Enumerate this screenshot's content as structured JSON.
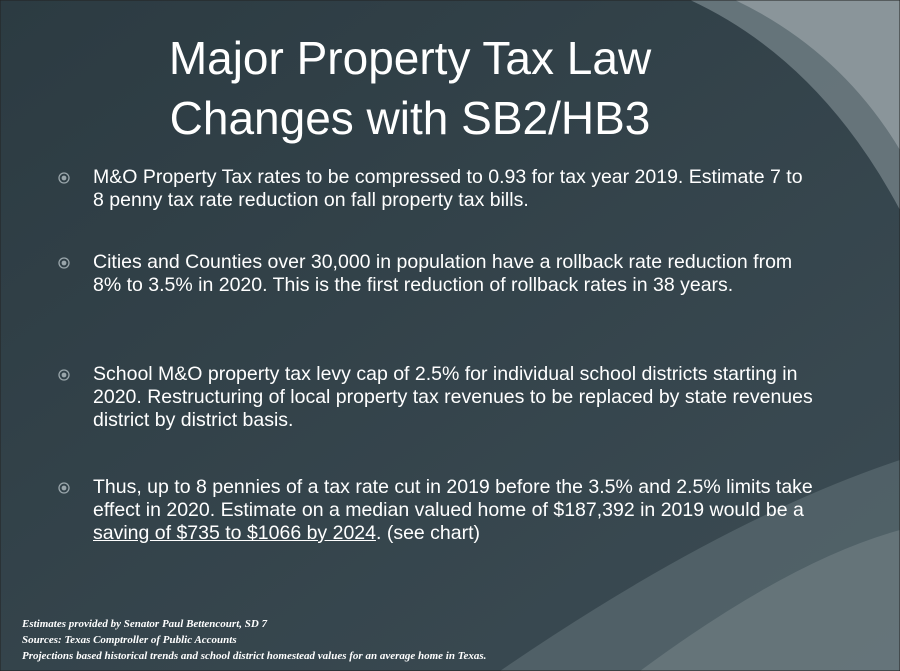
{
  "title": {
    "line1": "Major Property Tax Law",
    "line2": "Changes with SB2/HB3"
  },
  "bullets": [
    {
      "text": "M&O Property Tax rates to be compressed to 0.93 for tax year 2019. Estimate 7 to 8 penny tax rate reduction on fall property tax bills."
    },
    {
      "text": "Cities and Counties over 30,000 in population have a rollback rate reduction from 8% to 3.5% in 2020. This is the first reduction of rollback rates in 38 years."
    },
    {
      "text": "School M&O property tax levy cap of 2.5% for individual school districts starting in 2020.  Restructuring of local property tax revenues to be replaced by state revenues district by district basis."
    },
    {
      "text": "Thus, up to 8 pennies of a tax rate cut in 2019 before the 3.5% and 2.5% limits take effect in 2020. Estimate on a median valued home of $187,392 in 2019 would be a ",
      "underlined": "saving of $735 to $1066 by 2024",
      "text_after": ". (see chart)"
    }
  ],
  "footnotes": [
    "Estimates provided by Senator Paul Bettencourt, SD 7",
    "Sources: Texas Comptroller of Public Accounts",
    "Projections based historical trends and school district homestead values for an average home in Texas."
  ]
}
